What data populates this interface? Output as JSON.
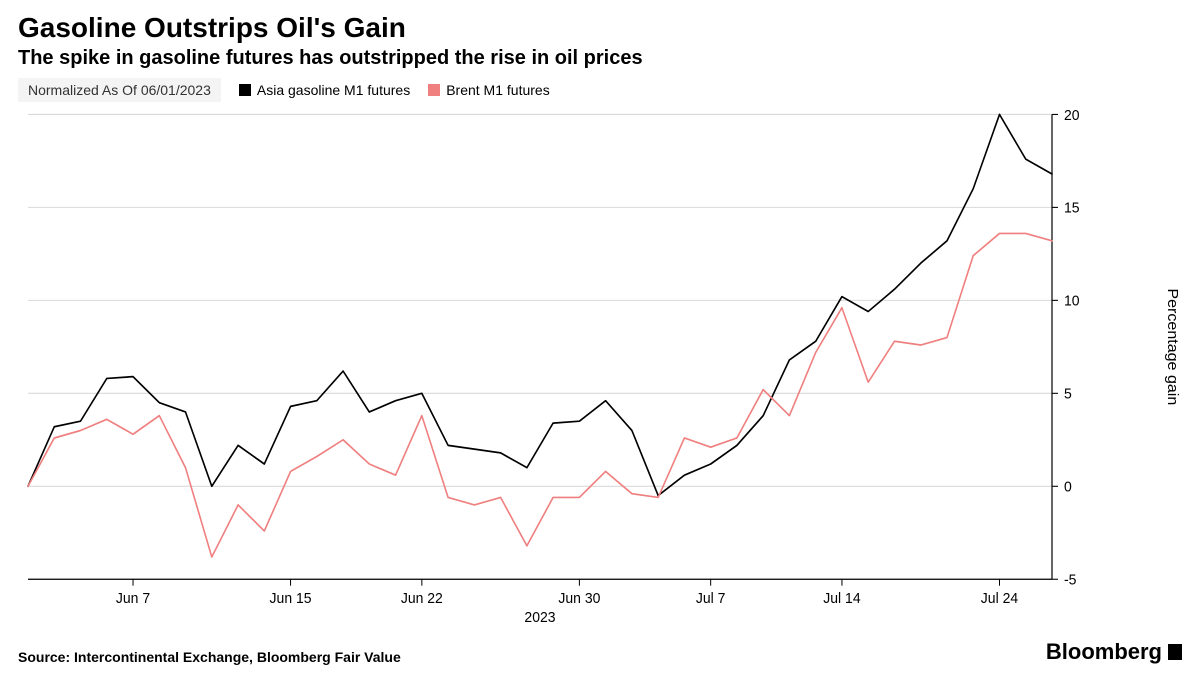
{
  "title": "Gasoline Outstrips Oil's Gain",
  "subtitle": "The spike in gasoline futures has outstripped the rise in oil prices",
  "normalized_label": "Normalized As Of 06/01/2023",
  "legend": [
    {
      "label": "Asia gasoline M1 futures",
      "color": "#000000"
    },
    {
      "label": "Brent M1 futures",
      "color": "#f08080"
    }
  ],
  "source": "Source: Intercontinental Exchange, Bloomberg Fair Value",
  "brand": "Bloomberg",
  "chart": {
    "type": "line",
    "background_color": "#ffffff",
    "grid_color": "#d9d9d9",
    "axis_color": "#000000",
    "line_width": 1.6,
    "y_axis_label": "Percentage gain",
    "x_year_label": "2023",
    "ylim": [
      -5,
      20
    ],
    "ytick_step": 5,
    "yticks": [
      -5,
      0,
      5,
      10,
      15,
      20
    ],
    "x_count": 40,
    "x_ticks": [
      {
        "idx": 4,
        "label": "Jun 7"
      },
      {
        "idx": 10,
        "label": "Jun 15"
      },
      {
        "idx": 15,
        "label": "Jun 22"
      },
      {
        "idx": 21,
        "label": "Jun 30"
      },
      {
        "idx": 26,
        "label": "Jul 7"
      },
      {
        "idx": 31,
        "label": "Jul 14"
      },
      {
        "idx": 37,
        "label": "Jul 24"
      }
    ],
    "series": [
      {
        "name": "Asia gasoline M1 futures",
        "color": "#000000",
        "values": [
          0.0,
          3.2,
          3.5,
          5.8,
          5.9,
          4.5,
          4.0,
          0.0,
          2.2,
          1.2,
          4.3,
          4.6,
          6.2,
          4.0,
          4.6,
          5.0,
          2.2,
          2.0,
          1.8,
          1.0,
          3.4,
          3.5,
          4.6,
          3.0,
          -0.5,
          0.6,
          1.2,
          2.2,
          3.8,
          6.8,
          7.8,
          10.2,
          9.4,
          10.6,
          12.0,
          13.2,
          16.0,
          20.0,
          17.6,
          16.8
        ]
      },
      {
        "name": "Brent M1 futures",
        "color": "#f08080",
        "values": [
          0.0,
          2.6,
          3.0,
          3.6,
          2.8,
          3.8,
          1.0,
          -3.8,
          -1.0,
          -2.4,
          0.8,
          1.6,
          2.5,
          1.2,
          0.6,
          3.8,
          -0.6,
          -1.0,
          -0.6,
          -3.2,
          -0.6,
          -0.6,
          0.8,
          -0.4,
          -0.6,
          2.6,
          2.1,
          2.6,
          5.2,
          3.8,
          7.2,
          9.6,
          5.6,
          7.8,
          7.6,
          8.0,
          12.4,
          13.6,
          13.6,
          13.2
        ]
      }
    ]
  }
}
